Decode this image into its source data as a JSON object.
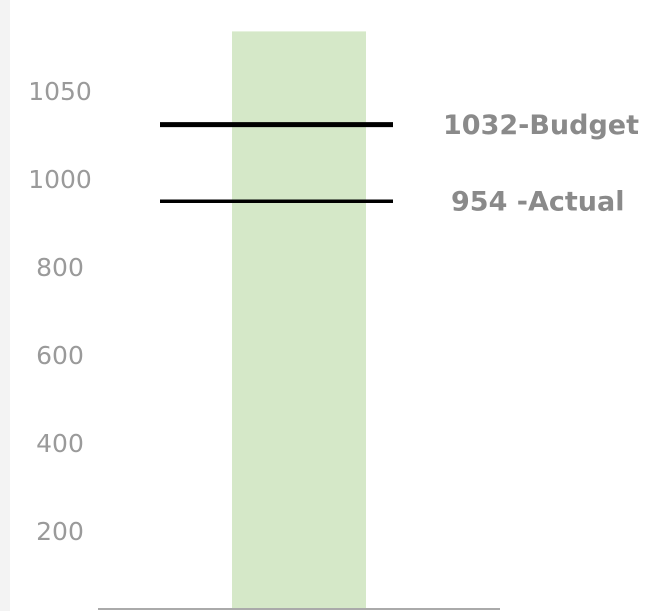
{
  "chart_data": {
    "type": "bullet",
    "bar": {
      "value": 1085,
      "color": "#d5e8c8"
    },
    "values": [
      1032,
      954
    ],
    "value_labels": [
      "1032-Budget",
      "954 -Actual"
    ],
    "line_color": "#000000",
    "ylim": [
      0,
      1085
    ],
    "yticks": [
      200,
      400,
      600,
      800,
      1000,
      1050
    ]
  }
}
